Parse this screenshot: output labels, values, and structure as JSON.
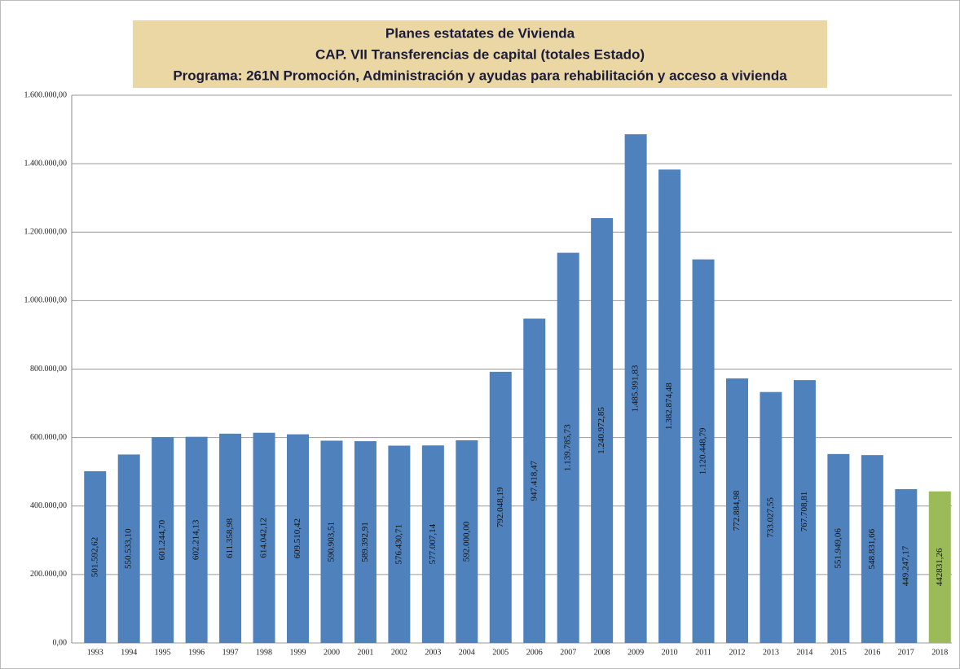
{
  "chart_data": {
    "type": "bar",
    "title_lines": [
      "Planes estatates de Vivienda",
      "CAP. VII Transferencias de capital (totales Estado)",
      "Programa: 261N Promoción, Administración y ayudas para rehabilitación y acceso a vivienda"
    ],
    "categories": [
      "1993",
      "1994",
      "1995",
      "1996",
      "1997",
      "1998",
      "1999",
      "2000",
      "2001",
      "2002",
      "2003",
      "2004",
      "2005",
      "2006",
      "2007",
      "2008",
      "2009",
      "2010",
      "2011",
      "2012",
      "2013",
      "2014",
      "2015",
      "2016",
      "2017",
      "2018"
    ],
    "values": [
      501592.62,
      550533.1,
      601244.7,
      602214.13,
      611358.98,
      614042.12,
      609510.42,
      590903.51,
      589392.91,
      576430.71,
      577007.14,
      592000.0,
      792048.19,
      947418.47,
      1139785.73,
      1240972.85,
      1485991.83,
      1382874.48,
      1120448.79,
      772884.98,
      733027.55,
      767708.81,
      551949.06,
      548831.66,
      449247.17,
      442831.26
    ],
    "value_labels": [
      "501.592,62",
      "550.533,10",
      "601.244,70",
      "602.214,13",
      "611.358,98",
      "614.042,12",
      "609.510,42",
      "590.903,51",
      "589.392,91",
      "576.430,71",
      "577.007,14",
      "592.000,00",
      "792.048,19",
      "947.418,47",
      "1.139.785,73",
      "1.240.972,85",
      "1.485.991,83",
      "1.382.874,48",
      "1.120.448,79",
      "772.884,98",
      "733.027,55",
      "767.708,81",
      "551.949,06",
      "548.831,66",
      "449.247,17",
      "442831,26"
    ],
    "colors": [
      "#4f81bd",
      "#4f81bd",
      "#4f81bd",
      "#4f81bd",
      "#4f81bd",
      "#4f81bd",
      "#4f81bd",
      "#4f81bd",
      "#4f81bd",
      "#4f81bd",
      "#4f81bd",
      "#4f81bd",
      "#4f81bd",
      "#4f81bd",
      "#4f81bd",
      "#4f81bd",
      "#4f81bd",
      "#4f81bd",
      "#4f81bd",
      "#4f81bd",
      "#4f81bd",
      "#4f81bd",
      "#4f81bd",
      "#4f81bd",
      "#4f81bd",
      "#9bbb59"
    ],
    "ylim": [
      0,
      1600000
    ],
    "yticks": [
      {
        "value": 0,
        "label": "0,00"
      },
      {
        "value": 200000,
        "label": "200.000,00"
      },
      {
        "value": 400000,
        "label": "400.000,00"
      },
      {
        "value": 600000,
        "label": "600.000,00"
      },
      {
        "value": 800000,
        "label": "800.000,00"
      },
      {
        "value": 1000000,
        "label": "1.000.000,00"
      },
      {
        "value": 1200000,
        "label": "1.200.000,00"
      },
      {
        "value": 1400000,
        "label": "1.400.000,00"
      },
      {
        "value": 1600000,
        "label": "1.600.000,00"
      }
    ],
    "grid": true
  }
}
